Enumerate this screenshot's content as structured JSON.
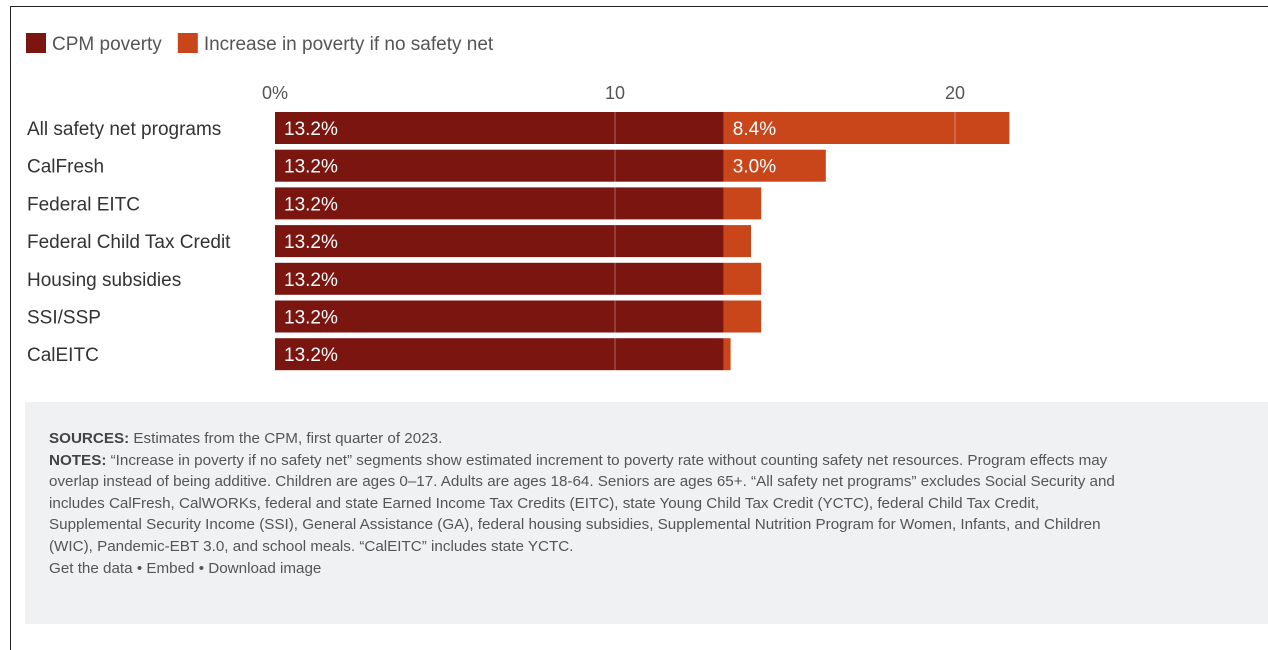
{
  "chart_data": {
    "type": "bar",
    "orientation": "horizontal",
    "stacked": true,
    "categories": [
      "All safety net programs",
      "CalFresh",
      "Federal EITC",
      "Federal Child Tax Credit",
      "Housing subsidies",
      "SSI/SSP",
      "CalEITC"
    ],
    "series": [
      {
        "name": "CPM poverty",
        "color": "#7a1510",
        "values": [
          13.2,
          13.2,
          13.2,
          13.2,
          13.2,
          13.2,
          13.2
        ]
      },
      {
        "name": "Increase in poverty if no safety net",
        "color": "#c9461b",
        "values": [
          8.4,
          3.0,
          1.1,
          0.8,
          1.1,
          1.1,
          0.2
        ]
      }
    ],
    "data_labels": [
      [
        "13.2%",
        "13.2%",
        "13.2%",
        "13.2%",
        "13.2%",
        "13.2%",
        "13.2%"
      ],
      [
        "8.4%",
        "3.0%",
        "",
        "",
        "",
        "",
        ""
      ]
    ],
    "x_ticks": [
      0,
      10,
      20
    ],
    "x_tick_labels": [
      "0%",
      "10",
      "20"
    ],
    "xlim": [
      0,
      23
    ],
    "grid": true,
    "legend_position": "top-left"
  },
  "notes": {
    "sources_label": "SOURCES:",
    "sources_text": " Estimates from the CPM, first quarter of 2023.",
    "notes_label": "NOTES:",
    "notes_lines": [
      " “Increase in poverty if no safety net” segments show estimated increment to poverty rate without counting safety net resources. Program effects may",
      "overlap instead of being additive. Children are ages 0–17. Adults are ages 18-64. Seniors are ages 65+. “All safety net programs” excludes Social Security and",
      "includes CalFresh, CalWORKs, federal and state Earned Income Tax Credits (EITC), state Young Child Tax Credit (YCTC), federal Child Tax Credit,",
      "Supplemental Security Income (SSI), General Assistance (GA), federal housing subsidies, Supplemental Nutrition Program for Women, Infants, and Children",
      "(WIC), Pandemic-EBT 3.0, and school meals. “CalEITC” includes state YCTC."
    ],
    "links": [
      "Get the data",
      "Embed",
      "Download image"
    ],
    "separator": " • "
  }
}
